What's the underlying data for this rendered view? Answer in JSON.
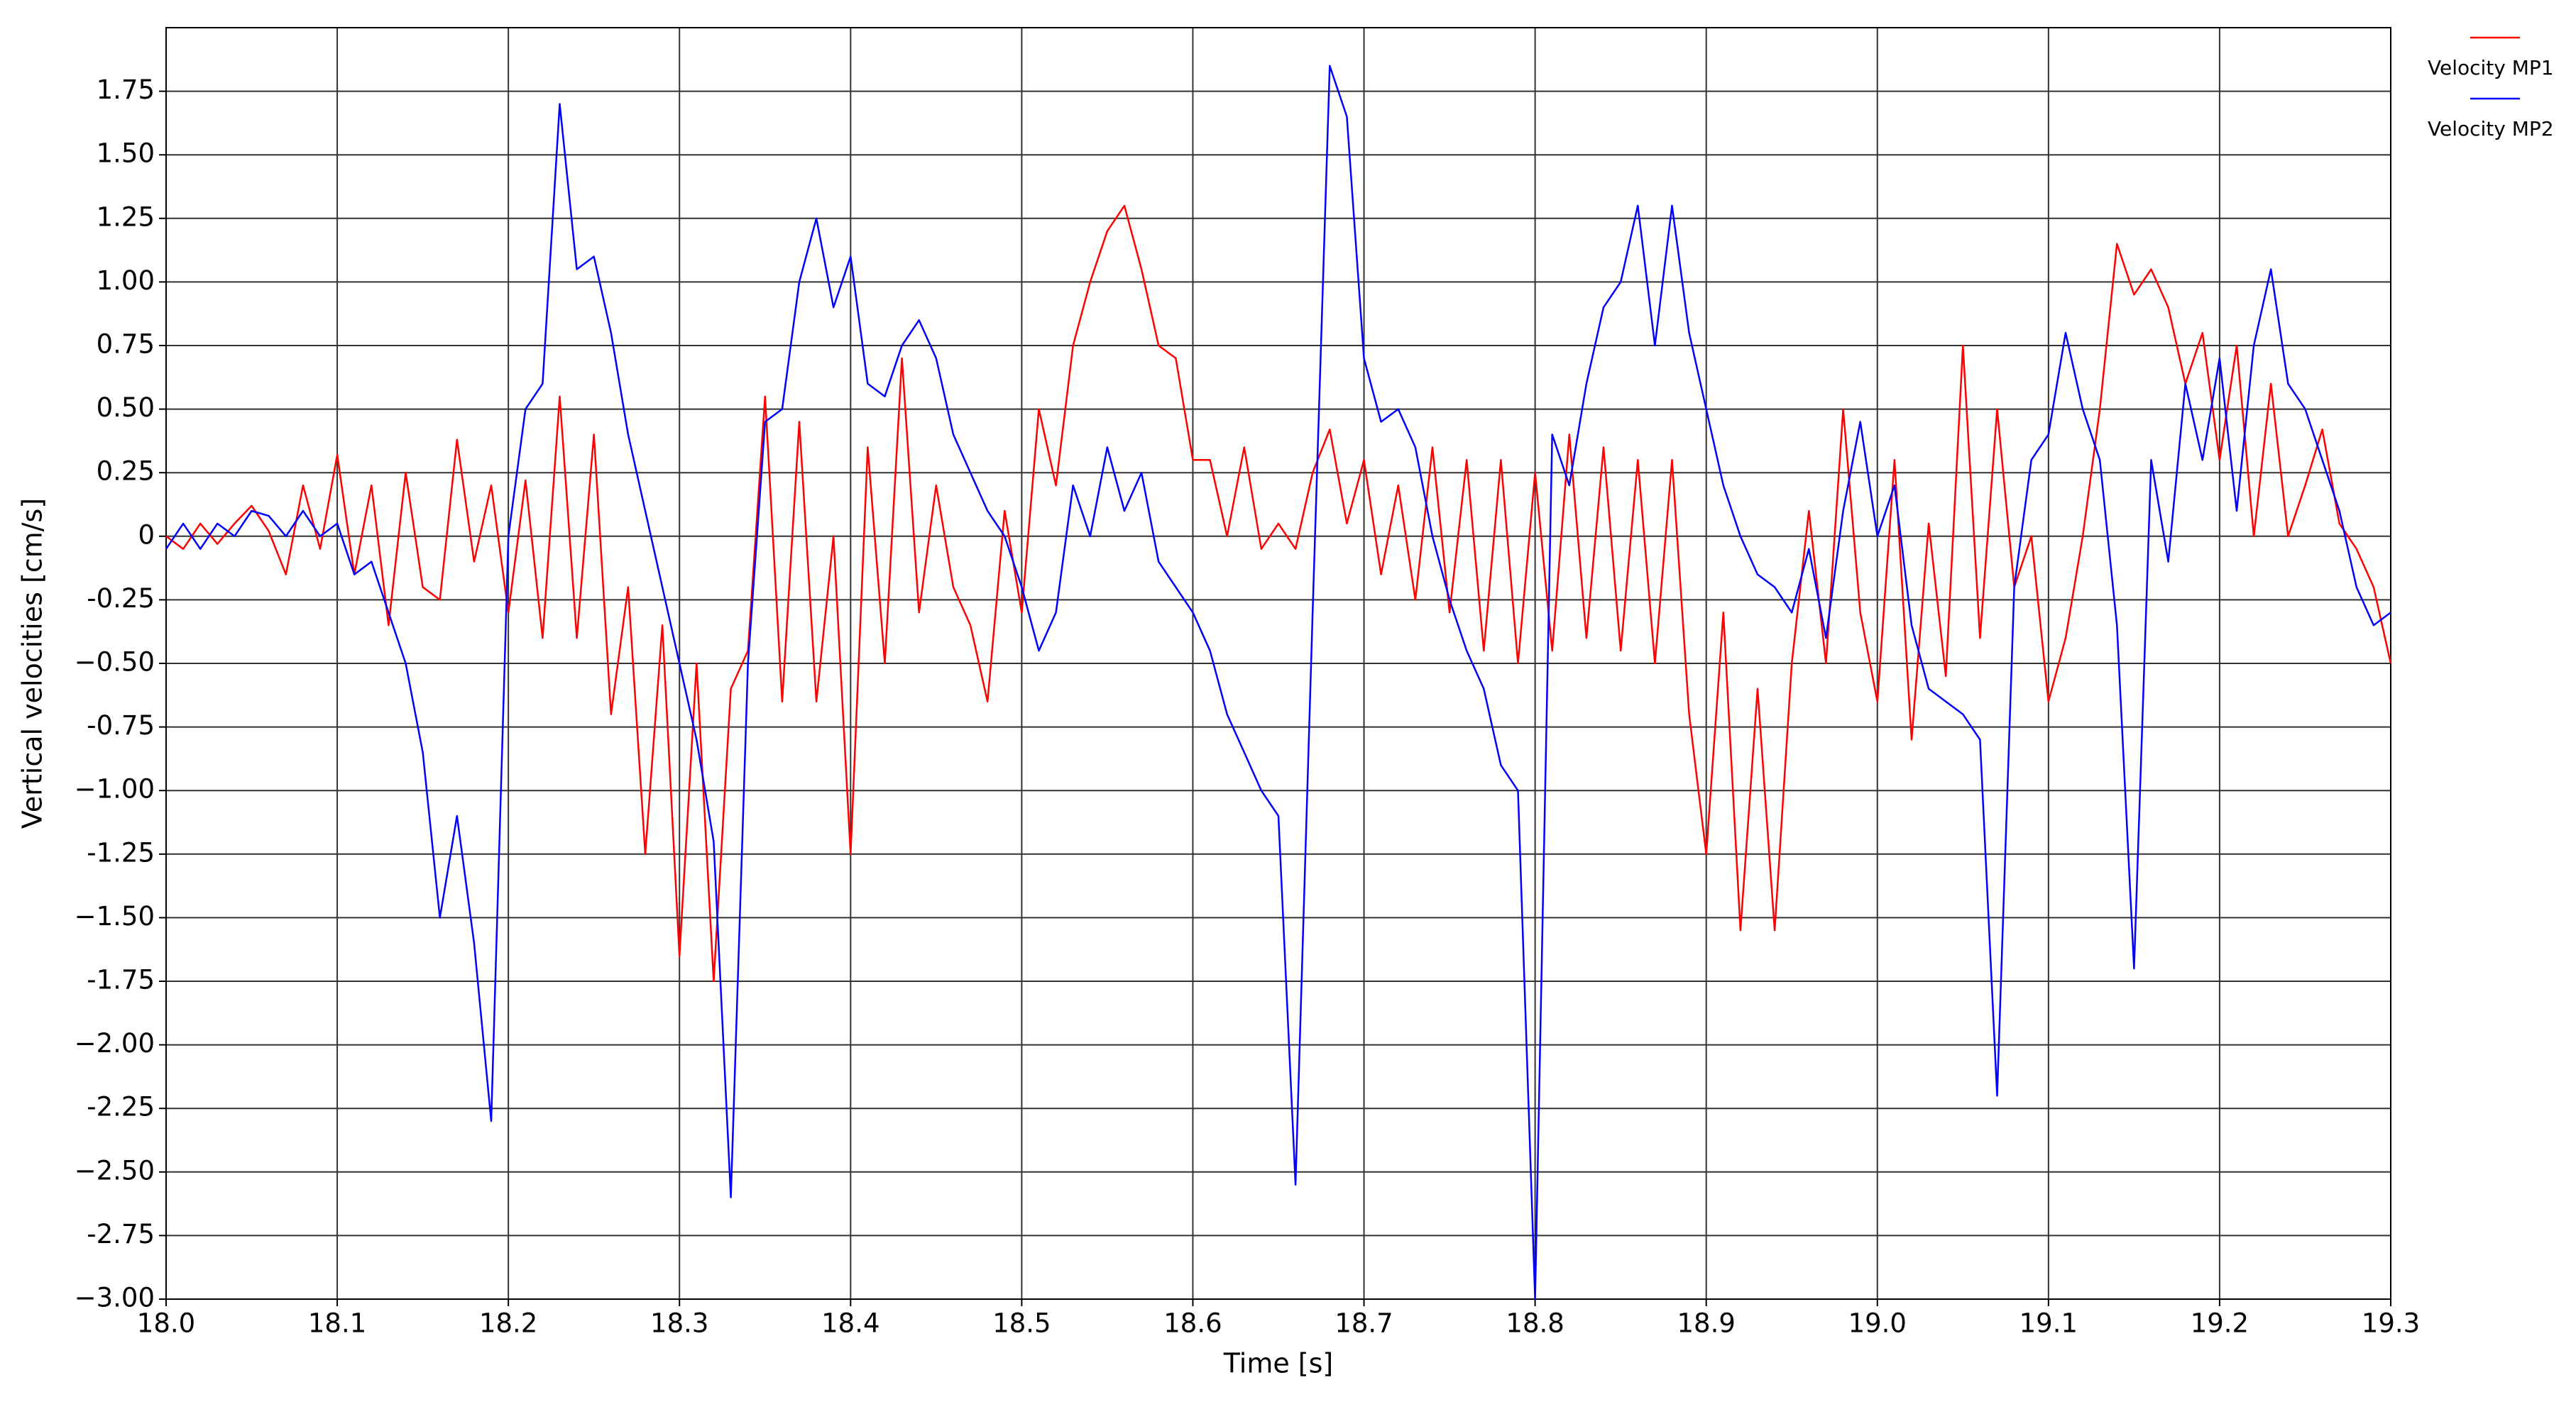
{
  "chart_data": {
    "type": "line",
    "xlabel": "Time  [s]",
    "ylabel": "Vertical velocities  [cm/s]",
    "x": [
      18,
      18.01,
      18.02,
      18.03,
      18.04,
      18.05,
      18.06,
      18.07,
      18.08,
      18.09,
      18.1,
      18.11,
      18.12,
      18.13,
      18.14,
      18.15,
      18.16,
      18.17,
      18.18,
      18.19,
      18.2,
      18.21,
      18.22,
      18.23,
      18.24,
      18.25,
      18.26,
      18.27,
      18.28,
      18.29,
      18.3,
      18.31,
      18.32,
      18.33,
      18.34,
      18.35,
      18.36,
      18.37,
      18.38,
      18.39,
      18.4,
      18.41,
      18.42,
      18.43,
      18.44,
      18.45,
      18.46,
      18.47,
      18.48,
      18.49,
      18.5,
      18.51,
      18.52,
      18.53,
      18.54,
      18.55,
      18.56,
      18.57,
      18.58,
      18.59,
      18.6,
      18.61,
      18.62,
      18.63,
      18.64,
      18.65,
      18.66,
      18.67,
      18.68,
      18.69,
      18.7,
      18.71,
      18.72,
      18.73,
      18.74,
      18.75,
      18.76,
      18.77,
      18.78,
      18.79,
      18.8,
      18.81,
      18.82,
      18.83,
      18.84,
      18.85,
      18.86,
      18.87,
      18.88,
      18.89,
      18.9,
      18.91,
      18.92,
      18.93,
      18.94,
      18.95,
      18.96,
      18.97,
      18.98,
      18.99,
      19,
      19.01,
      19.02,
      19.03,
      19.04,
      19.05,
      19.06,
      19.07,
      19.08,
      19.09,
      19.1,
      19.11,
      19.12,
      19.13,
      19.14,
      19.15,
      19.16,
      19.17,
      19.18,
      19.19,
      19.2,
      19.21,
      19.22,
      19.23,
      19.24,
      19.25,
      19.26,
      19.27,
      19.28,
      19.29,
      19.3
    ],
    "series": [
      {
        "name": "Velocity MP1",
        "color": "#ff0000",
        "values": [
          0,
          -0.05,
          0.05,
          -0.03,
          0.05,
          0.12,
          0.02,
          -0.15,
          0.2,
          -0.05,
          0.32,
          -0.15,
          0.2,
          -0.35,
          0.25,
          -0.2,
          -0.25,
          0.38,
          -0.1,
          0.2,
          -0.3,
          0.22,
          -0.4,
          0.55,
          -0.4,
          0.4,
          -0.7,
          -0.2,
          -1.25,
          -0.35,
          -1.65,
          -0.5,
          -1.75,
          -0.6,
          -0.45,
          0.55,
          -0.65,
          0.45,
          -0.65,
          0,
          -1.25,
          0.35,
          -0.5,
          0.7,
          -0.3,
          0.2,
          -0.2,
          -0.35,
          -0.65,
          0.1,
          -0.3,
          0.5,
          0.2,
          0.75,
          1,
          1.2,
          1.3,
          1.05,
          0.75,
          0.7,
          0.3,
          0.3,
          0,
          0.35,
          -0.05,
          0.05,
          -0.05,
          0.25,
          0.42,
          0.05,
          0.3,
          -0.15,
          0.2,
          -0.25,
          0.35,
          -0.3,
          0.3,
          -0.45,
          0.3,
          -0.5,
          0.25,
          -0.45,
          0.4,
          -0.4,
          0.35,
          -0.45,
          0.3,
          -0.5,
          0.3,
          -0.7,
          -1.25,
          -0.3,
          -1.55,
          -0.6,
          -1.55,
          -0.5,
          0.1,
          -0.5,
          0.5,
          -0.3,
          -0.65,
          0.3,
          -0.8,
          0.05,
          -0.55,
          0.75,
          -0.4,
          0.5,
          -0.2,
          0,
          -0.65,
          -0.4,
          0,
          0.5,
          1.15,
          0.95,
          1.05,
          0.9,
          0.6,
          0.8,
          0.3,
          0.75,
          0,
          0.6,
          0,
          0.2,
          0.42,
          0.05,
          -0.05,
          -0.2,
          -0.5
        ]
      },
      {
        "name": "Velocity MP2",
        "color": "#0000ff",
        "values": [
          -0.05,
          0.05,
          -0.05,
          0.05,
          0,
          0.1,
          0.08,
          0,
          0.1,
          0,
          0.05,
          -0.15,
          -0.1,
          -0.3,
          -0.5,
          -0.85,
          -1.5,
          -1.1,
          -1.6,
          -2.3,
          0,
          0.5,
          0.6,
          1.7,
          1.05,
          1.1,
          0.8,
          0.4,
          0.1,
          -0.2,
          -0.5,
          -0.8,
          -1.2,
          -2.6,
          -0.5,
          0.45,
          0.5,
          1,
          1.25,
          0.9,
          1.1,
          0.6,
          0.55,
          0.75,
          0.85,
          0.7,
          0.4,
          0.25,
          0.1,
          0,
          -0.2,
          -0.45,
          -0.3,
          0.2,
          0,
          0.35,
          0.1,
          0.25,
          -0.1,
          -0.2,
          -0.3,
          -0.45,
          -0.7,
          -0.85,
          -1,
          -1.1,
          -2.55,
          -0.3,
          1.85,
          1.65,
          0.7,
          0.45,
          0.5,
          0.35,
          0,
          -0.25,
          -0.45,
          -0.6,
          -0.9,
          -1,
          -3,
          0.4,
          0.2,
          0.6,
          0.9,
          1,
          1.3,
          0.75,
          1.3,
          0.8,
          0.5,
          0.2,
          0,
          -0.15,
          -0.2,
          -0.3,
          -0.05,
          -0.4,
          0.1,
          0.45,
          0,
          0.2,
          -0.35,
          -0.6,
          -0.65,
          -0.7,
          -0.8,
          -2.2,
          -0.2,
          0.3,
          0.4,
          0.8,
          0.5,
          0.3,
          -0.35,
          -1.7,
          0.3,
          -0.1,
          0.6,
          0.3,
          0.7,
          0.1,
          0.75,
          1.05,
          0.6,
          0.5,
          0.3,
          0.1,
          -0.2,
          -0.35,
          -0.3
        ]
      }
    ],
    "xlim": [
      18,
      19.3
    ],
    "xticks": [
      {
        "value": 18,
        "label": "18.0"
      },
      18.1,
      18.2,
      18.3,
      18.4,
      18.5,
      18.6,
      18.7,
      18.8,
      18.9,
      {
        "value": 19,
        "label": "19.0"
      },
      19.1,
      19.2,
      19.3
    ],
    "ylim": [
      -3,
      2
    ],
    "yticks": [
      {
        "value": -3,
        "label": "−3.00"
      },
      -2.75,
      {
        "value": -2.5,
        "label": "−2.50"
      },
      -2.25,
      {
        "value": -2,
        "label": "−2.00"
      },
      -1.75,
      {
        "value": -1.5,
        "label": "−1.50"
      },
      -1.25,
      {
        "value": -1,
        "label": "−1.00"
      },
      -0.75,
      {
        "value": -0.5,
        "label": "−0.50"
      },
      -0.25,
      0,
      0.25,
      {
        "value": 0.5,
        "label": "0.50"
      },
      0.75,
      {
        "value": 1,
        "label": "1.00"
      },
      1.25,
      {
        "value": 1.5,
        "label": "1.50"
      },
      1.75
    ],
    "grid": true,
    "legend": "outside-top-right"
  }
}
